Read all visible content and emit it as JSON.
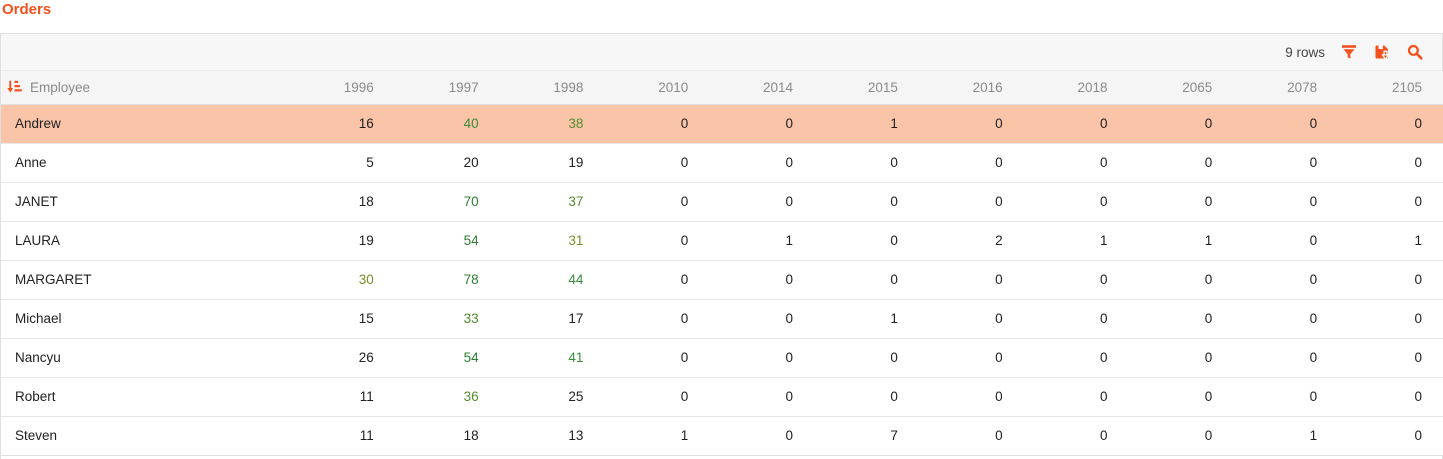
{
  "title": "Orders",
  "palette": {
    "accent": "#f4511e",
    "highlight_row": "#f9c4a8",
    "border": "#e0e0e0",
    "toolbar_bg": "#f7f7f7",
    "header_bg": "#f5f5f5",
    "header_text": "#8a8a8a",
    "cell_text": "#212121",
    "rows_text": "#424242"
  },
  "toolbar": {
    "rows_label": "9 rows",
    "icons": [
      "filter-icon",
      "save-download-icon",
      "search-icon"
    ]
  },
  "table": {
    "sort_icon": "sort-ascending-icon",
    "sorted_column": "Employee",
    "columns": [
      "Employee",
      "1996",
      "1997",
      "1998",
      "2010",
      "2014",
      "2015",
      "2016",
      "2018",
      "2065",
      "2078",
      "2105"
    ],
    "rows": [
      {
        "employee": "Andrew",
        "highlighted": true,
        "values": [
          16,
          40,
          38,
          0,
          0,
          1,
          0,
          0,
          0,
          0,
          0
        ],
        "value_colors": [
          null,
          "#388e3c",
          "#558b2f",
          null,
          null,
          null,
          null,
          null,
          null,
          null,
          null
        ]
      },
      {
        "employee": "Anne",
        "highlighted": false,
        "values": [
          5,
          20,
          19,
          0,
          0,
          0,
          0,
          0,
          0,
          0,
          0
        ],
        "value_colors": [
          null,
          null,
          null,
          null,
          null,
          null,
          null,
          null,
          null,
          null,
          null
        ]
      },
      {
        "employee": "JANET",
        "highlighted": false,
        "values": [
          18,
          70,
          37,
          0,
          0,
          0,
          0,
          0,
          0,
          0,
          0
        ],
        "value_colors": [
          null,
          "#2e7d32",
          "#558b2f",
          null,
          null,
          null,
          null,
          null,
          null,
          null,
          null
        ]
      },
      {
        "employee": "LAURA",
        "highlighted": false,
        "values": [
          19,
          54,
          31,
          0,
          1,
          0,
          2,
          1,
          1,
          0,
          1
        ],
        "value_colors": [
          null,
          "#2e7d32",
          "#7f8b24",
          null,
          null,
          null,
          null,
          null,
          null,
          null,
          null
        ]
      },
      {
        "employee": "MARGARET",
        "highlighted": false,
        "values": [
          30,
          78,
          44,
          0,
          0,
          0,
          0,
          0,
          0,
          0,
          0
        ],
        "value_colors": [
          "#7f8b24",
          "#2e7d32",
          "#388e3c",
          null,
          null,
          null,
          null,
          null,
          null,
          null,
          null
        ]
      },
      {
        "employee": "Michael",
        "highlighted": false,
        "values": [
          15,
          33,
          17,
          0,
          0,
          1,
          0,
          0,
          0,
          0,
          0
        ],
        "value_colors": [
          null,
          "#558b2f",
          null,
          null,
          null,
          null,
          null,
          null,
          null,
          null,
          null
        ]
      },
      {
        "employee": "Nancyu",
        "highlighted": false,
        "values": [
          26,
          54,
          41,
          0,
          0,
          0,
          0,
          0,
          0,
          0,
          0
        ],
        "value_colors": [
          null,
          "#2e7d32",
          "#388e3c",
          null,
          null,
          null,
          null,
          null,
          null,
          null,
          null
        ]
      },
      {
        "employee": "Robert",
        "highlighted": false,
        "values": [
          11,
          36,
          25,
          0,
          0,
          0,
          0,
          0,
          0,
          0,
          0
        ],
        "value_colors": [
          null,
          "#558b2f",
          null,
          null,
          null,
          null,
          null,
          null,
          null,
          null,
          null
        ]
      },
      {
        "employee": "Steven",
        "highlighted": false,
        "values": [
          11,
          18,
          13,
          1,
          0,
          7,
          0,
          0,
          0,
          1,
          0
        ],
        "value_colors": [
          null,
          null,
          null,
          null,
          null,
          null,
          null,
          null,
          null,
          null,
          null
        ]
      }
    ]
  }
}
